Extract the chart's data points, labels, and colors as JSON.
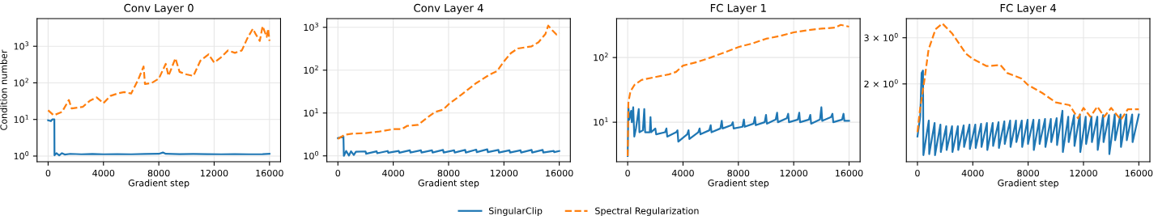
{
  "chart_data": [
    {
      "type": "line",
      "title": "Conv Layer 0",
      "xlabel": "Gradient step",
      "ylabel": "Condition number",
      "log": "y",
      "grid": true,
      "legend": "bottom",
      "xlim": [
        -800,
        16800
      ],
      "xticks": [
        0,
        4000,
        8000,
        12000,
        16000
      ],
      "ylim": [
        0.7,
        5700
      ],
      "yticks": [
        {
          "value": 1,
          "label": "10$^{0}$"
        },
        {
          "value": 10,
          "label": "10$^{1}$"
        },
        {
          "value": 100,
          "label": "10$^{2}$"
        },
        {
          "value": 1000,
          "label": "10$^{3}$"
        }
      ],
      "series": [
        {
          "name": "SingularClip",
          "color": "#1f77b4",
          "line_style": "solid",
          "x": [
            0,
            200,
            300,
            450,
            460,
            600,
            800,
            1000,
            1200,
            1600,
            2400,
            3200,
            4000,
            5000,
            6000,
            7000,
            8000,
            8300,
            8500,
            9500,
            10500,
            11500,
            12500,
            13500,
            14500,
            15500,
            16000
          ],
          "values": [
            9.5,
            9,
            10,
            10,
            1.05,
            1.2,
            1.05,
            1.2,
            1.1,
            1.15,
            1.12,
            1.14,
            1.12,
            1.13,
            1.12,
            1.14,
            1.15,
            1.25,
            1.15,
            1.13,
            1.14,
            1.13,
            1.12,
            1.13,
            1.12,
            1.13,
            1.15
          ]
        },
        {
          "name": "Spectral Regularization",
          "color": "#ff7f0e",
          "line_style": "dashed",
          "x": [
            0,
            400,
            1000,
            1500,
            1700,
            2500,
            3000,
            3500,
            4000,
            4500,
            5000,
            5500,
            6000,
            6500,
            6900,
            7000,
            7500,
            8000,
            8500,
            8700,
            9200,
            9500,
            10000,
            10500,
            11000,
            11600,
            12000,
            12500,
            13000,
            13500,
            14000,
            14400,
            14800,
            15000,
            15300,
            15500,
            15800,
            15900,
            16000
          ],
          "values": [
            17.8,
            13,
            16,
            34,
            20,
            22,
            32,
            40,
            28,
            44,
            51,
            56,
            51,
            120,
            280,
            93,
            100,
            130,
            330,
            155,
            470,
            200,
            170,
            155,
            400,
            600,
            360,
            500,
            770,
            660,
            770,
            1650,
            3000,
            2150,
            1400,
            3550,
            1800,
            3000,
            1400
          ]
        }
      ]
    },
    {
      "type": "line",
      "title": "Conv Layer 4",
      "xlabel": "Gradient step",
      "log": "y",
      "grid": true,
      "xlim": [
        -800,
        16800
      ],
      "xticks": [
        0,
        4000,
        8000,
        12000,
        16000
      ],
      "ylim": [
        0.73,
        1600
      ],
      "yticks": [
        {
          "value": 1,
          "label": "10$^{0}$"
        },
        {
          "value": 10,
          "label": "10$^{1}$"
        },
        {
          "value": 100,
          "label": "10$^{2}$"
        },
        {
          "value": 1000,
          "label": "10$^{3}$"
        }
      ],
      "series": [
        {
          "name": "SingularClip",
          "color": "#1f77b4",
          "line_style": "solid",
          "x": [
            0,
            400,
            430,
            600,
            800,
            950,
            1150,
            1300,
            2000,
            2040,
            2800,
            2840,
            3600,
            3640,
            4400,
            4440,
            5200,
            5240,
            6000,
            6040,
            6800,
            6840,
            7600,
            7640,
            8400,
            8440,
            9200,
            9240,
            10000,
            10040,
            10800,
            10840,
            11600,
            11640,
            12400,
            12440,
            13200,
            13240,
            14000,
            14040,
            14800,
            14840,
            15600,
            15640,
            16000
          ],
          "values": [
            2.6,
            2.85,
            1.0,
            1.3,
            1.02,
            1.28,
            1.05,
            1.25,
            1.27,
            1.12,
            1.28,
            1.15,
            1.3,
            1.18,
            1.3,
            1.18,
            1.35,
            1.2,
            1.35,
            1.2,
            1.35,
            1.2,
            1.38,
            1.2,
            1.35,
            1.2,
            1.38,
            1.2,
            1.4,
            1.22,
            1.42,
            1.22,
            1.38,
            1.2,
            1.35,
            1.2,
            1.35,
            1.2,
            1.38,
            1.2,
            1.38,
            1.2,
            1.3,
            1.22,
            1.3
          ]
        },
        {
          "name": "Spectral Regularization",
          "color": "#ff7f0e",
          "line_style": "dashed",
          "x": [
            0,
            500,
            1000,
            2000,
            3000,
            4000,
            4600,
            5000,
            5800,
            6500,
            7000,
            7600,
            8000,
            9000,
            10000,
            11000,
            11500,
            12000,
            12500,
            13000,
            14000,
            14500,
            15000,
            15200,
            15500,
            15800,
            16000
          ],
          "values": [
            2.5,
            3.1,
            3.3,
            3.4,
            3.7,
            4.2,
            4.2,
            5.0,
            5.3,
            8,
            10.5,
            12,
            16,
            28,
            50,
            80,
            95,
            160,
            250,
            320,
            360,
            450,
            700,
            1100,
            850,
            680,
            750
          ]
        }
      ]
    },
    {
      "type": "line",
      "title": "FC Layer 1",
      "xlabel": "Gradient step",
      "log": "y",
      "grid": true,
      "xlim": [
        -800,
        16800
      ],
      "xticks": [
        0,
        4000,
        8000,
        12000,
        16000
      ],
      "ylim": [
        2.45,
        400
      ],
      "yticks": [
        {
          "value": 10,
          "label": "10$^{1}$"
        },
        {
          "value": 100,
          "label": "10$^{2}$"
        }
      ],
      "series": [
        {
          "name": "SingularClip",
          "color": "#1f77b4",
          "line_style": "solid",
          "x": [
            0,
            50,
            120,
            250,
            300,
            400,
            480,
            600,
            800,
            850,
            1100,
            1200,
            1260,
            1600,
            1650,
            1700,
            2000,
            2060,
            2700,
            2800,
            2860,
            3500,
            3600,
            3660,
            4300,
            4400,
            4460,
            5100,
            5200,
            5260,
            5900,
            6000,
            6060,
            6700,
            6800,
            6860,
            7500,
            7600,
            7660,
            8300,
            8400,
            8460,
            9100,
            9200,
            9260,
            9900,
            10000,
            10060,
            10700,
            10800,
            10860,
            11500,
            11600,
            11660,
            12300,
            12400,
            12460,
            13100,
            13200,
            13260,
            13900,
            14000,
            14060,
            14700,
            14800,
            14860,
            15500,
            15600,
            15660,
            16000
          ],
          "values": [
            3,
            17,
            11,
            15,
            10,
            17,
            6,
            8,
            16,
            7,
            7.5,
            16,
            7,
            7,
            12,
            7,
            8,
            6.5,
            7,
            8,
            6,
            7,
            7.5,
            5,
            6.5,
            7.5,
            5.5,
            7,
            8,
            6.5,
            7.5,
            9,
            7,
            8,
            10.5,
            8,
            9,
            10,
            8,
            8.5,
            11,
            8.5,
            9.5,
            12,
            9,
            10,
            13,
            9.5,
            11,
            14,
            10,
            11.5,
            13.5,
            10,
            11,
            14,
            10,
            11,
            13,
            9.5,
            11,
            17,
            10.5,
            12,
            13.5,
            10,
            11,
            13.5,
            10.5,
            10.5
          ]
        },
        {
          "name": "Spectral Regularization",
          "color": "#ff7f0e",
          "line_style": "dashed",
          "x": [
            0,
            50,
            200,
            500,
            1000,
            2000,
            3000,
            3500,
            4000,
            4500,
            5000,
            6000,
            7000,
            8000,
            9000,
            10000,
            11000,
            12000,
            13000,
            14000,
            15000,
            15400,
            16000
          ],
          "values": [
            3,
            20,
            30,
            38,
            45,
            50,
            55,
            60,
            75,
            80,
            85,
            100,
            120,
            145,
            165,
            195,
            215,
            245,
            265,
            280,
            290,
            320,
            300
          ]
        }
      ]
    },
    {
      "type": "line",
      "title": "FC Layer 4",
      "xlabel": "Gradient step",
      "log": "y",
      "grid": true,
      "xlim": [
        -800,
        16800
      ],
      "xticks": [
        0,
        4000,
        8000,
        12000,
        16000
      ],
      "ylim": [
        1.01,
        3.55
      ],
      "yticks": [
        {
          "value": 2,
          "label": "2 × 10$^{0}$"
        },
        {
          "value": 3,
          "label": "3 × 10$^{0}$"
        }
      ],
      "series": [
        {
          "name": "SingularClip",
          "color": "#1f77b4",
          "line_style": "solid",
          "x": [
            0,
            200,
            300,
            400,
            430,
            820,
            850,
            1240,
            1270,
            1660,
            1690,
            2080,
            2110,
            2500,
            2530,
            2920,
            2950,
            3340,
            3370,
            3760,
            3790,
            4180,
            4210,
            4600,
            4630,
            5020,
            5050,
            5440,
            5470,
            5860,
            5890,
            6280,
            6310,
            6700,
            6730,
            7120,
            7150,
            7540,
            7570,
            7960,
            7990,
            8380,
            8410,
            8800,
            8830,
            9220,
            9250,
            9640,
            9670,
            10060,
            10090,
            10480,
            10510,
            10900,
            10930,
            11320,
            11350,
            11740,
            11770,
            12160,
            12190,
            12580,
            12610,
            13000,
            13030,
            13420,
            13450,
            13840,
            13870,
            14260,
            14290,
            14680,
            14710,
            15100,
            15130,
            15520,
            15550,
            16000
          ],
          "values": [
            1.26,
            1.5,
            2.2,
            2.25,
            1.07,
            1.45,
            1.08,
            1.42,
            1.07,
            1.4,
            1.1,
            1.38,
            1.12,
            1.38,
            1.1,
            1.38,
            1.12,
            1.39,
            1.15,
            1.4,
            1.13,
            1.4,
            1.14,
            1.41,
            1.15,
            1.42,
            1.12,
            1.42,
            1.16,
            1.43,
            1.14,
            1.44,
            1.18,
            1.45,
            1.15,
            1.45,
            1.2,
            1.45,
            1.15,
            1.46,
            1.18,
            1.46,
            1.12,
            1.46,
            1.18,
            1.47,
            1.15,
            1.47,
            1.2,
            1.48,
            1.17,
            1.58,
            1.1,
            1.5,
            1.2,
            1.52,
            1.16,
            1.53,
            1.1,
            1.5,
            1.18,
            1.5,
            1.2,
            1.5,
            1.12,
            1.52,
            1.2,
            1.52,
            1.08,
            1.53,
            1.22,
            1.53,
            1.15,
            1.53,
            1.22,
            1.53,
            1.2,
            1.53
          ]
        },
        {
          "name": "Spectral Regularization",
          "color": "#ff7f0e",
          "line_style": "dashed",
          "x": [
            0,
            200,
            500,
            800,
            1300,
            1800,
            2500,
            3500,
            4000,
            5000,
            6000,
            6500,
            7500,
            8000,
            9000,
            10000,
            10500,
            11000,
            11600,
            12000,
            12500,
            13000,
            13500,
            14000,
            14700,
            15200,
            16000
          ],
          "values": [
            1.31,
            1.62,
            2.06,
            2.7,
            3.23,
            3.4,
            3.12,
            2.61,
            2.49,
            2.34,
            2.36,
            2.2,
            2.1,
            1.98,
            1.85,
            1.7,
            1.68,
            1.66,
            1.48,
            1.62,
            1.5,
            1.64,
            1.5,
            1.62,
            1.46,
            1.6,
            1.6
          ]
        }
      ]
    }
  ]
}
